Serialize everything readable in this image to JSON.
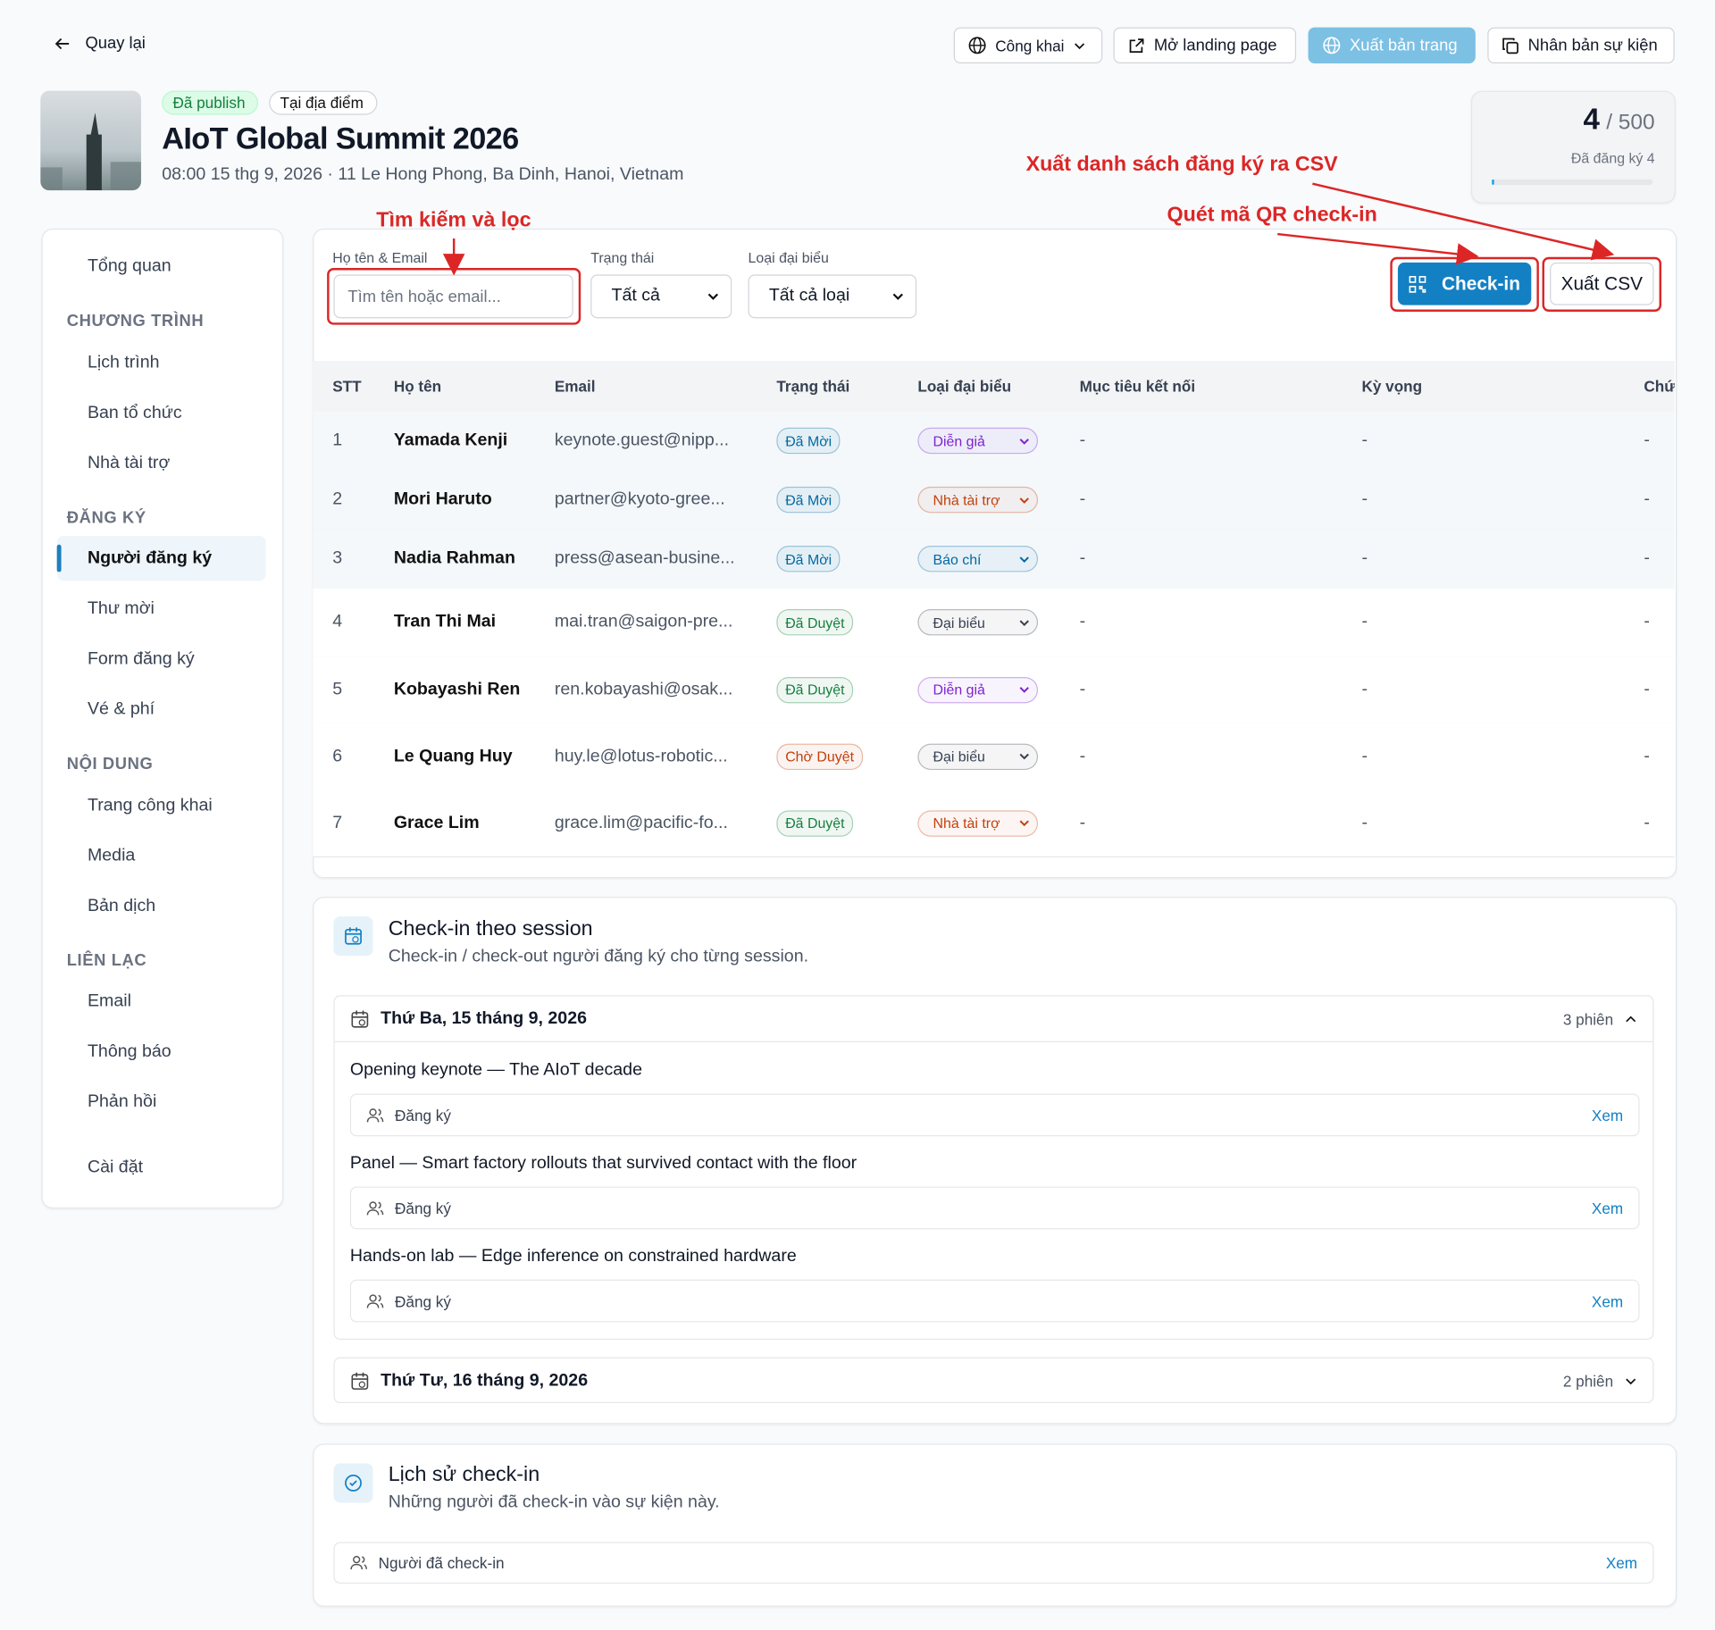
{
  "header": {
    "back": "Quay lại",
    "visibility": "Công khai",
    "open_landing": "Mở landing page",
    "publish": "Xuất bản trang",
    "duplicate": "Nhân bản sự kiện"
  },
  "event": {
    "badges": [
      "Đã publish",
      "Tại địa điểm"
    ],
    "title": "AIoT Global Summit 2026",
    "meta": "08:00 15 thg 9, 2026 · 11 Le Hong Phong, Ba Dinh, Hanoi, Vietnam",
    "registered": "4",
    "capacity": "/ 500",
    "registered_label": "Đã đăng ký 4"
  },
  "annotations": [
    "Tìm kiếm và lọc",
    "Xuất danh sách đăng ký ra CSV",
    "Quét mã QR check-in"
  ],
  "sidebar": {
    "top": "Tổng quan",
    "sections": [
      {
        "heading": "CHƯƠNG TRÌNH",
        "items": [
          "Lịch trình",
          "Ban tổ chức",
          "Nhà tài trợ"
        ]
      },
      {
        "heading": "ĐĂNG KÝ",
        "items": [
          "Người đăng ký",
          "Thư mời",
          "Form đăng ký",
          "Vé & phí"
        ]
      },
      {
        "heading": "NỘI DUNG",
        "items": [
          "Trang công khai",
          "Media",
          "Bản dịch"
        ]
      },
      {
        "heading": "LIÊN LẠC",
        "items": [
          "Email",
          "Thông báo",
          "Phản hồi"
        ]
      }
    ],
    "bottom": "Cài đặt"
  },
  "filters": {
    "search_label": "Họ tên & Email",
    "search_placeholder": "Tìm tên hoặc email...",
    "status_label": "Trạng thái",
    "status_value": "Tất cả",
    "type_label": "Loại đại biểu",
    "type_value": "Tất cả loại",
    "checkin": "Check-in",
    "export": "Xuất CSV"
  },
  "table": {
    "columns": [
      "STT",
      "Họ tên",
      "Email",
      "Trạng thái",
      "Loại đại biểu",
      "Mục tiêu kết nối",
      "Kỳ vọng",
      "Chứ"
    ],
    "rows": [
      {
        "cells": [
          "1",
          "Yamada Kenji",
          "keynote.guest@nipp...",
          "Đã Mời",
          "Diễn giả",
          "-",
          "-",
          "-"
        ],
        "status_color": "#0369a1",
        "type_color": "#7e22ce",
        "highlight": true
      },
      {
        "cells": [
          "2",
          "Mori Haruto",
          "partner@kyoto-gree...",
          "Đã Mời",
          "Nhà tài trợ",
          "-",
          "-",
          "-"
        ],
        "status_color": "#0369a1",
        "type_color": "#c2410c",
        "highlight": true
      },
      {
        "cells": [
          "3",
          "Nadia Rahman",
          "press@asean-busine...",
          "Đã Mời",
          "Báo chí",
          "-",
          "-",
          "-"
        ],
        "status_color": "#0369a1",
        "type_color": "#0369a1",
        "highlight": true
      },
      {
        "cells": [
          "4",
          "Tran Thi Mai",
          "mai.tran@saigon-pre...",
          "Đã Duyệt",
          "Đại biểu",
          "-",
          "-",
          "-"
        ],
        "status_color": "#15803d",
        "type_color": "#374151",
        "highlight": false
      },
      {
        "cells": [
          "5",
          "Kobayashi Ren",
          "ren.kobayashi@osak...",
          "Đã Duyệt",
          "Diễn giả",
          "-",
          "-",
          "-"
        ],
        "status_color": "#15803d",
        "type_color": "#7e22ce",
        "highlight": false
      },
      {
        "cells": [
          "6",
          "Le Quang Huy",
          "huy.le@lotus-robotic...",
          "Chờ Duyệt",
          "Đại biểu",
          "-",
          "-",
          "-"
        ],
        "status_color": "#c2410c",
        "type_color": "#374151",
        "highlight": false
      },
      {
        "cells": [
          "7",
          "Grace Lim",
          "grace.lim@pacific-fo...",
          "Đã Duyệt",
          "Nhà tài trợ",
          "-",
          "-",
          "-"
        ],
        "status_color": "#15803d",
        "type_color": "#c2410c",
        "highlight": false
      }
    ]
  },
  "sessions": {
    "title": "Check-in theo session",
    "subtitle": "Check-in / check-out người đăng ký cho từng session.",
    "days": [
      {
        "label": "Thứ Ba, 15 tháng 9, 2026",
        "count": "3 phiên",
        "sessions": [
          {
            "title": "Opening keynote — The AIoT decade",
            "action": "Đăng ký",
            "link": "Xem"
          },
          {
            "title": "Panel — Smart factory rollouts that survived contact with the floor",
            "action": "Đăng ký",
            "link": "Xem"
          },
          {
            "title": "Hands-on lab — Edge inference on constrained hardware",
            "action": "Đăng ký",
            "link": "Xem"
          }
        ]
      },
      {
        "label": "Thứ Tư, 16 tháng 9, 2026",
        "count": "2 phiên",
        "sessions": []
      }
    ]
  },
  "history": {
    "title": "Lịch sử check-in",
    "subtitle": "Những người đã check-in vào sự kiện này.",
    "row": "Người đã check-in",
    "link": "Xem"
  }
}
